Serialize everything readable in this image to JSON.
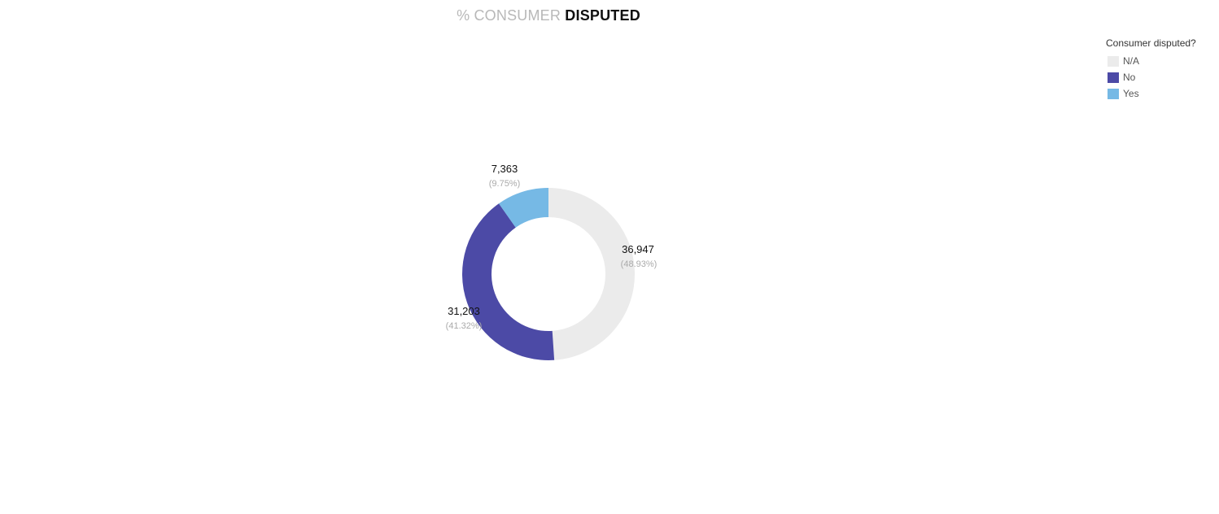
{
  "title": {
    "light": "% CONSUMER",
    "bold": "DISPUTED"
  },
  "legend": {
    "title": "Consumer disputed?",
    "items": [
      {
        "label": "N/A",
        "color": "#ebebeb"
      },
      {
        "label": "No",
        "color": "#4c4aa6"
      },
      {
        "label": "Yes",
        "color": "#76b9e5"
      }
    ]
  },
  "chart_data": {
    "type": "pie",
    "title": "% CONSUMER DISPUTED",
    "categories": [
      "N/A",
      "No",
      "Yes"
    ],
    "values": [
      36947,
      31203,
      7363
    ],
    "percentages": [
      48.93,
      41.32,
      9.75
    ],
    "value_labels": [
      "36,947",
      "31,203",
      "7,363"
    ],
    "percent_labels": [
      "(48.93%)",
      "(41.32%)",
      "(9.75%)"
    ],
    "colors": [
      "#ebebeb",
      "#4c4aa6",
      "#76b9e5"
    ],
    "legend_title": "Consumer disputed?",
    "legend_position": "top-right",
    "donut": true
  }
}
